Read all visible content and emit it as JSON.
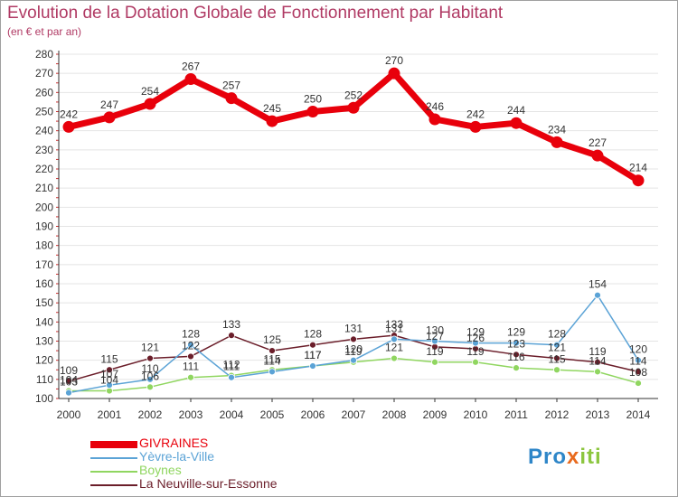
{
  "page": {
    "title": "Evolution de la Dotation Globale de Fonctionnement par Habitant",
    "subtitle": "(en € et par an)"
  },
  "logo": {
    "text": "Proxiti",
    "part1": "Pro",
    "part2": "x",
    "part3": "iti"
  },
  "colors": {
    "title": "#b03a64",
    "axis": "#333333",
    "grid": "#e4e4e4"
  },
  "chart_data": {
    "type": "line",
    "title": "Evolution de la Dotation Globale de Fonctionnement par Habitant",
    "subtitle": "(en € et par an)",
    "xlabel": "",
    "ylabel": "",
    "x": [
      "2000",
      "2001",
      "2002",
      "2003",
      "2004",
      "2005",
      "2006",
      "2007",
      "2008",
      "2009",
      "2010",
      "2011",
      "2012",
      "2013",
      "2014"
    ],
    "ylim": [
      100,
      280
    ],
    "yticks": [
      "100",
      "110",
      "120",
      "130",
      "140",
      "150",
      "160",
      "170",
      "180",
      "190",
      "200",
      "210",
      "220",
      "230",
      "240",
      "250",
      "260",
      "270",
      "280"
    ],
    "grid": true,
    "legend_position": "bottom-left",
    "series": [
      {
        "name": "GIVRAINES",
        "color": "#e8000b",
        "values": [
          242,
          247,
          254,
          267,
          257,
          245,
          250,
          252,
          270,
          246,
          242,
          244,
          234,
          227,
          214
        ]
      },
      {
        "name": "Yèvre-la-Ville",
        "color": "#5ba3d6",
        "values": [
          103,
          107,
          110,
          128,
          111,
          114,
          117,
          120,
          131,
          130,
          129,
          129,
          128,
          154,
          120
        ]
      },
      {
        "name": "Boynes",
        "color": "#90d660",
        "values": [
          104,
          104,
          106,
          111,
          112,
          115,
          117,
          119,
          121,
          119,
          119,
          116,
          115,
          114,
          108
        ]
      },
      {
        "name": "La Neuville-sur-Essonne",
        "color": "#6b1e2a",
        "values": [
          109,
          115,
          121,
          122,
          133,
          125,
          128,
          131,
          133,
          127,
          126,
          123,
          121,
          119,
          114
        ]
      }
    ]
  }
}
